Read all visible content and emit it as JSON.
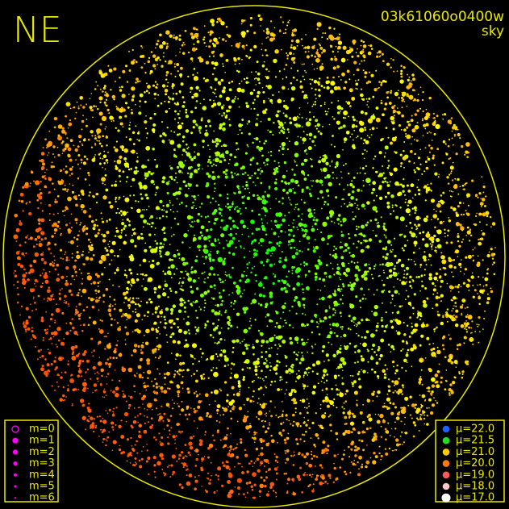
{
  "corner_label": "NE",
  "header": {
    "id": "03k61060o0400w",
    "mode": "sky"
  },
  "magnitude_legend": [
    {
      "label": "m=0",
      "color": "#ff00ff"
    },
    {
      "label": "m=1",
      "color": "#ff00ff"
    },
    {
      "label": "m=2",
      "color": "#ff00ff"
    },
    {
      "label": "m=3",
      "color": "#ff00ff"
    },
    {
      "label": "m=4",
      "color": "#ff00ff"
    },
    {
      "label": "m=5",
      "color": "#ff00ff"
    },
    {
      "label": "m=6",
      "color": "#ff00ff"
    }
  ],
  "brightness_legend": [
    {
      "label": "μ=22.0",
      "color": "#2060ff"
    },
    {
      "label": "μ=21.5",
      "color": "#22dd22"
    },
    {
      "label": "μ=21.0",
      "color": "#ffcc00"
    },
    {
      "label": "μ=20.0",
      "color": "#ff7a10"
    },
    {
      "label": "μ=19.0",
      "color": "#ff5a5a"
    },
    {
      "label": "μ=18.0",
      "color": "#ffc8c8"
    },
    {
      "label": "μ=17.0",
      "color": "#ffffff"
    }
  ]
}
